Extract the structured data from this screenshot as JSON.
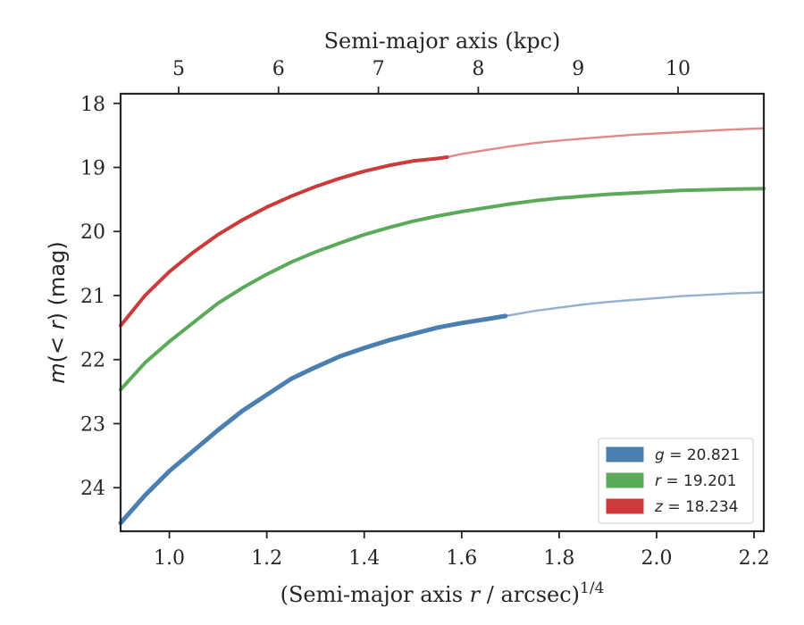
{
  "chart_data": {
    "type": "line",
    "xlabel": "(Semi-major axis r / arcsec)1/4",
    "ylabel": "m(< r) (mag)",
    "top_xlabel": "Semi-major axis (kpc)",
    "xlim": [
      0.9,
      2.22
    ],
    "ylim": [
      24.68,
      17.85
    ],
    "y_inverted": true,
    "grid": false,
    "legend_position": "lower-right",
    "x_ticks": [
      1.0,
      1.2,
      1.4,
      1.6,
      1.8,
      2.0,
      2.2
    ],
    "x_tick_labels": [
      "1.0",
      "1.2",
      "1.4",
      "1.6",
      "1.8",
      "2.0",
      "2.2"
    ],
    "y_ticks": [
      18,
      19,
      20,
      21,
      22,
      23,
      24
    ],
    "y_tick_labels": [
      "18",
      "19",
      "20",
      "21",
      "22",
      "23",
      "24"
    ],
    "top_x_ticks": [
      5,
      6,
      7,
      8,
      9,
      10
    ],
    "top_x_tick_labels": [
      "5",
      "6",
      "7",
      "8",
      "9",
      "10"
    ],
    "series": [
      {
        "name": "g = 20.821",
        "band": "g",
        "value": "20.821",
        "color": "#4a7fb0",
        "measured_x": [
          0.9,
          0.95,
          1.0,
          1.05,
          1.1,
          1.15,
          1.2,
          1.25,
          1.3,
          1.35,
          1.4,
          1.45,
          1.5,
          1.55,
          1.6,
          1.65,
          1.69
        ],
        "measured_y": [
          24.55,
          24.12,
          23.74,
          23.42,
          23.1,
          22.8,
          22.55,
          22.3,
          22.12,
          21.95,
          21.82,
          21.7,
          21.6,
          21.5,
          21.43,
          21.37,
          21.32
        ],
        "model_x": [
          1.69,
          1.75,
          1.8,
          1.85,
          1.9,
          1.95,
          2.0,
          2.05,
          2.1,
          2.15,
          2.22
        ],
        "model_y": [
          21.32,
          21.24,
          21.19,
          21.14,
          21.1,
          21.07,
          21.04,
          21.01,
          20.99,
          20.97,
          20.95
        ]
      },
      {
        "name": "r = 19.201",
        "band": "r",
        "value": "19.201",
        "color": "#5aaa5a",
        "measured_x": [
          0.9,
          0.95,
          1.0,
          1.05,
          1.1,
          1.15,
          1.2,
          1.25,
          1.3,
          1.35,
          1.4,
          1.45,
          1.5,
          1.55,
          1.6,
          1.65,
          1.7,
          1.75,
          1.8,
          1.85,
          1.9,
          1.95,
          2.0,
          2.05,
          2.1,
          2.15,
          2.22
        ],
        "measured_y": [
          22.47,
          22.05,
          21.72,
          21.42,
          21.12,
          20.88,
          20.67,
          20.48,
          20.32,
          20.18,
          20.05,
          19.94,
          19.84,
          19.76,
          19.69,
          19.63,
          19.57,
          19.52,
          19.48,
          19.45,
          19.42,
          19.4,
          19.38,
          19.36,
          19.35,
          19.34,
          19.33
        ],
        "model_x": [],
        "model_y": []
      },
      {
        "name": "z = 18.234",
        "band": "z",
        "value": "18.234",
        "color": "#cc3a3a",
        "measured_x": [
          0.9,
          0.95,
          1.0,
          1.05,
          1.1,
          1.15,
          1.2,
          1.25,
          1.3,
          1.35,
          1.4,
          1.45,
          1.5,
          1.55,
          1.57
        ],
        "measured_y": [
          21.47,
          21.0,
          20.63,
          20.32,
          20.05,
          19.82,
          19.62,
          19.45,
          19.3,
          19.17,
          19.06,
          18.97,
          18.9,
          18.86,
          18.84
        ],
        "model_x": [
          1.57,
          1.6,
          1.65,
          1.7,
          1.75,
          1.8,
          1.85,
          1.9,
          1.95,
          2.0,
          2.05,
          2.1,
          2.15,
          2.22
        ],
        "model_y": [
          18.84,
          18.79,
          18.73,
          18.67,
          18.62,
          18.58,
          18.55,
          18.52,
          18.49,
          18.47,
          18.45,
          18.43,
          18.41,
          18.39
        ]
      }
    ]
  }
}
